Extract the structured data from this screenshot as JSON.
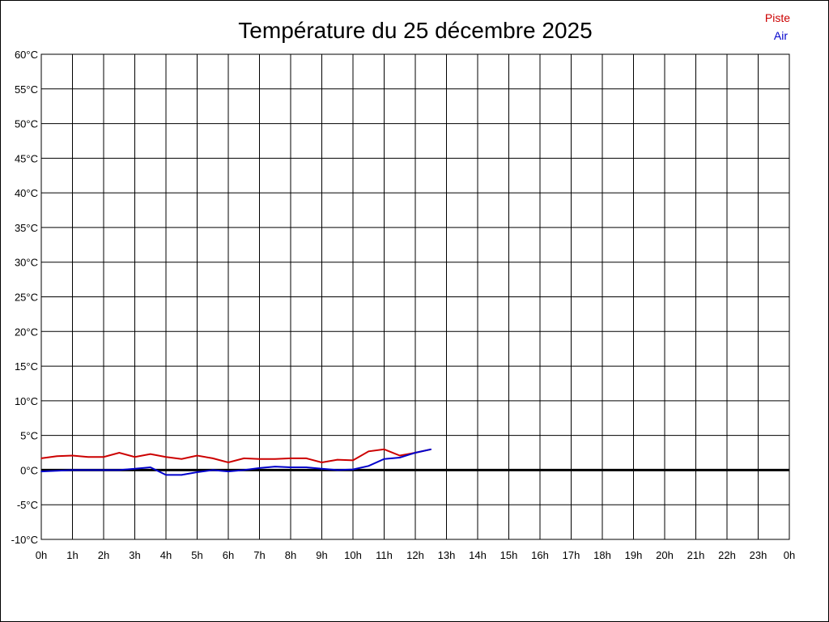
{
  "chart_data": {
    "type": "line",
    "title": "Température du 25 décembre 2025",
    "x_tick_labels": [
      "0h",
      "1h",
      "2h",
      "3h",
      "4h",
      "5h",
      "6h",
      "7h",
      "8h",
      "9h",
      "10h",
      "11h",
      "12h",
      "13h",
      "14h",
      "15h",
      "16h",
      "17h",
      "18h",
      "19h",
      "20h",
      "21h",
      "22h",
      "23h",
      "0h"
    ],
    "y_tick_labels": [
      "60°C",
      "55°C",
      "50°C",
      "45°C",
      "40°C",
      "35°C",
      "30°C",
      "25°C",
      "20°C",
      "15°C",
      "10°C",
      "5°C",
      "0°C",
      "-5°C",
      "-10°C"
    ],
    "xlim": [
      0,
      24
    ],
    "ylim": [
      -10,
      60
    ],
    "grid": true,
    "legend_position": "top-right",
    "series": [
      {
        "name": "Piste",
        "color": "#cc0000",
        "x": [
          0,
          0.5,
          1,
          1.5,
          2,
          2.5,
          3,
          3.5,
          4,
          4.5,
          5,
          5.5,
          6,
          6.5,
          7,
          7.5,
          8,
          8.5,
          9,
          9.5,
          10,
          10.5,
          11,
          11.5,
          12,
          12.5
        ],
        "y": [
          1.7,
          2.0,
          2.1,
          1.9,
          1.9,
          2.5,
          1.9,
          2.3,
          1.9,
          1.6,
          2.1,
          1.7,
          1.1,
          1.7,
          1.6,
          1.6,
          1.7,
          1.7,
          1.1,
          1.5,
          1.4,
          2.7,
          3.0,
          2.1,
          2.5,
          3.0
        ]
      },
      {
        "name": "Air",
        "color": "#0000cc",
        "x": [
          0,
          0.5,
          1,
          1.5,
          2,
          2.5,
          3,
          3.5,
          4,
          4.5,
          5,
          5.5,
          6,
          6.5,
          7,
          7.5,
          8,
          8.5,
          9,
          9.5,
          10,
          10.5,
          11,
          11.5,
          12,
          12.5
        ],
        "y": [
          -0.2,
          -0.1,
          0.0,
          0.0,
          0.0,
          0.0,
          0.2,
          0.4,
          -0.7,
          -0.7,
          -0.3,
          0.0,
          -0.2,
          0.0,
          0.3,
          0.5,
          0.4,
          0.4,
          0.2,
          0.0,
          0.1,
          0.6,
          1.6,
          1.8,
          2.5,
          3.0
        ]
      }
    ]
  },
  "colors": {
    "grid": "#000000",
    "zero_line": "#000000",
    "background": "#ffffff"
  }
}
